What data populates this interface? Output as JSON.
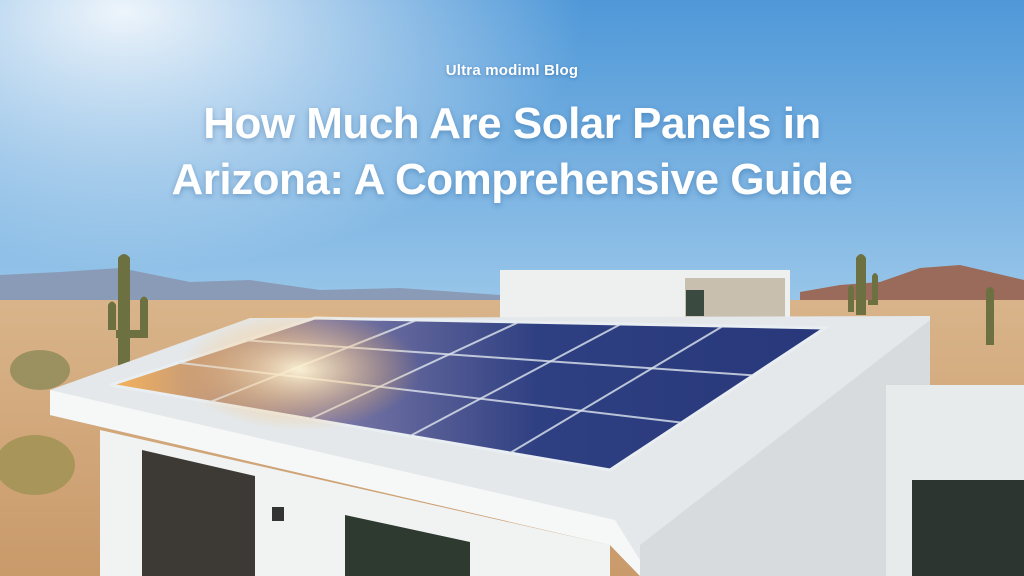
{
  "header": {
    "brand": "Ultra modiml Blog",
    "title_lines": [
      "How Much Are Solar Panels in",
      "Arizona: A Comprehensive Guide"
    ]
  }
}
